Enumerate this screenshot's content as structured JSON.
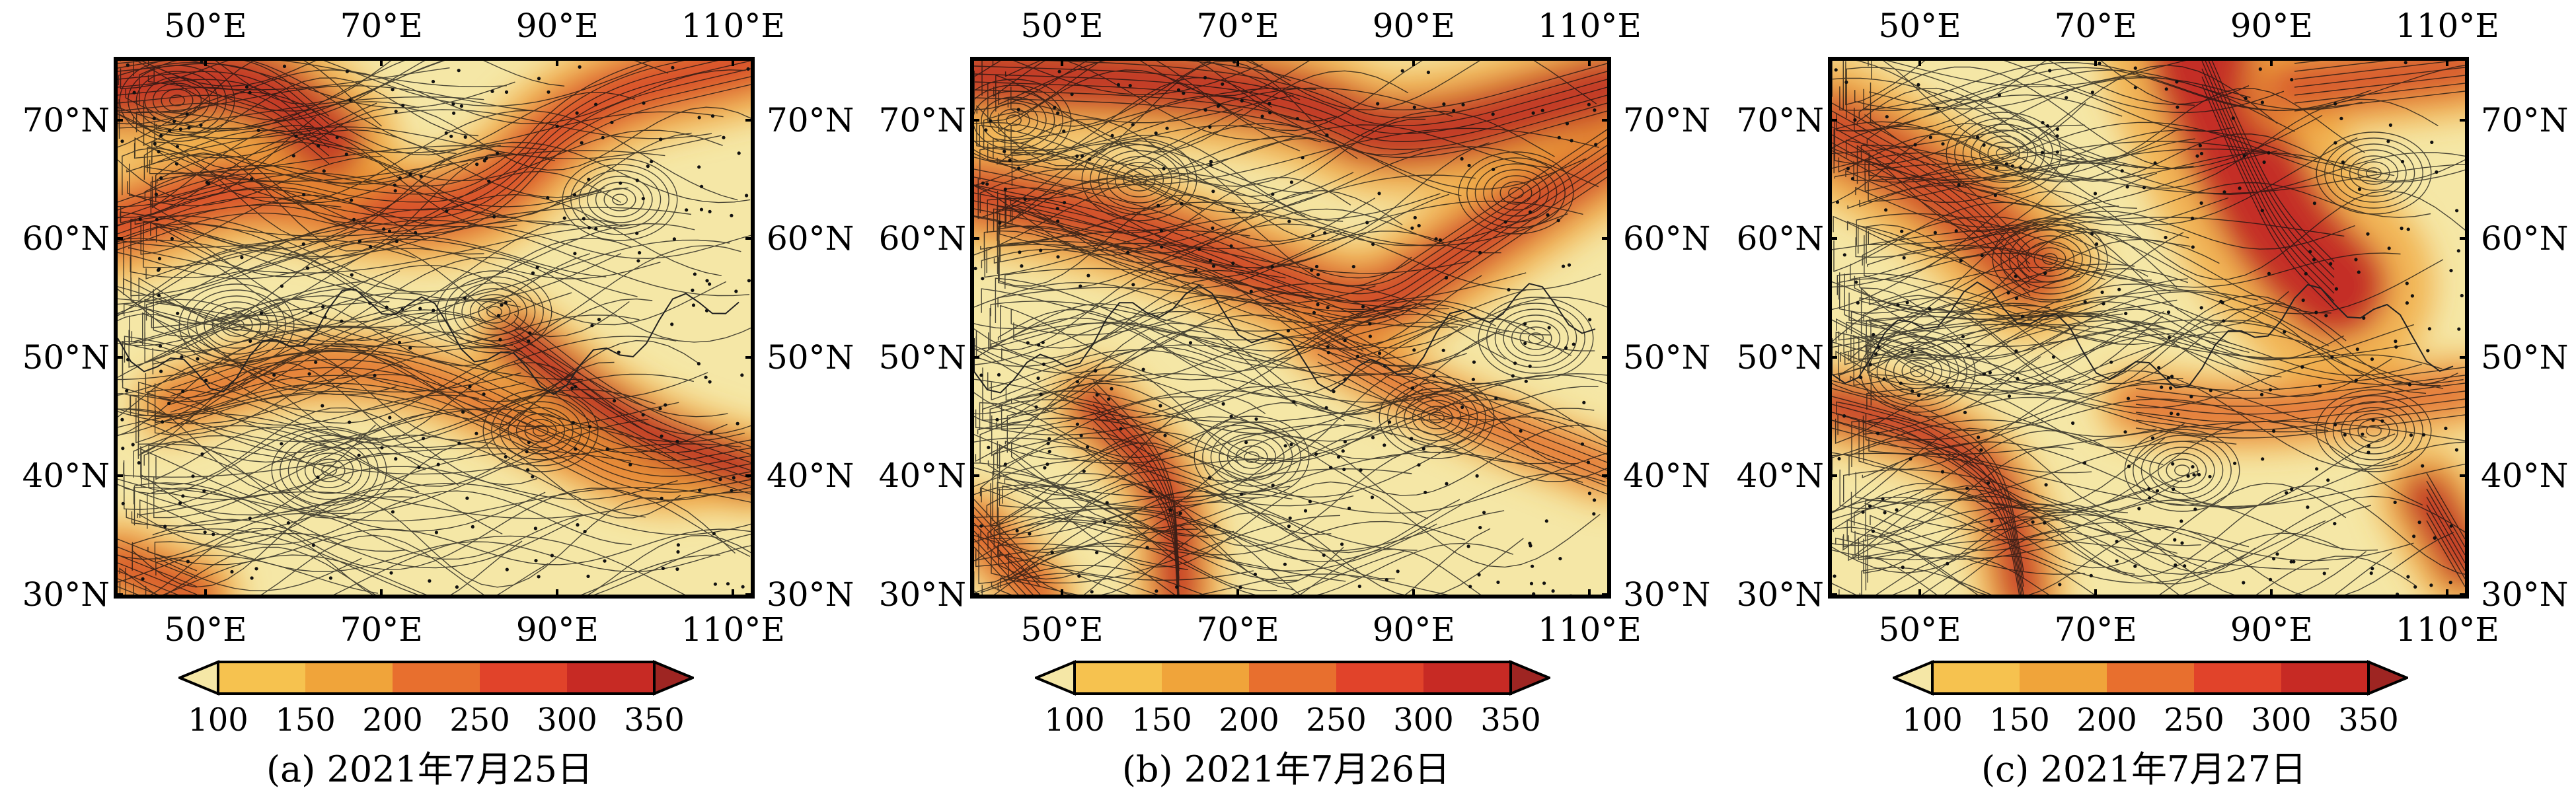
{
  "panels": [
    {
      "caption": "(a) 2021年7月25日"
    },
    {
      "caption": "(b) 2021年7月26日"
    },
    {
      "caption": "(c) 2021年7月27日"
    }
  ],
  "axes": {
    "x_ticks": [
      "50°E",
      "70°E",
      "90°E",
      "110°E"
    ],
    "y_ticks": [
      "70°N",
      "60°N",
      "50°N",
      "40°N",
      "30°N"
    ],
    "lon_range": [
      40,
      112
    ],
    "lat_range": [
      30,
      75
    ]
  },
  "colorbar": {
    "labels": [
      "100",
      "150",
      "200",
      "250",
      "300",
      "350"
    ],
    "colors": [
      "#f5e7a6",
      "#f6c24f",
      "#f0a43a",
      "#e86f2e",
      "#e1432a",
      "#c72a24",
      "#9e2522"
    ]
  },
  "streamline_color": "#111111"
}
